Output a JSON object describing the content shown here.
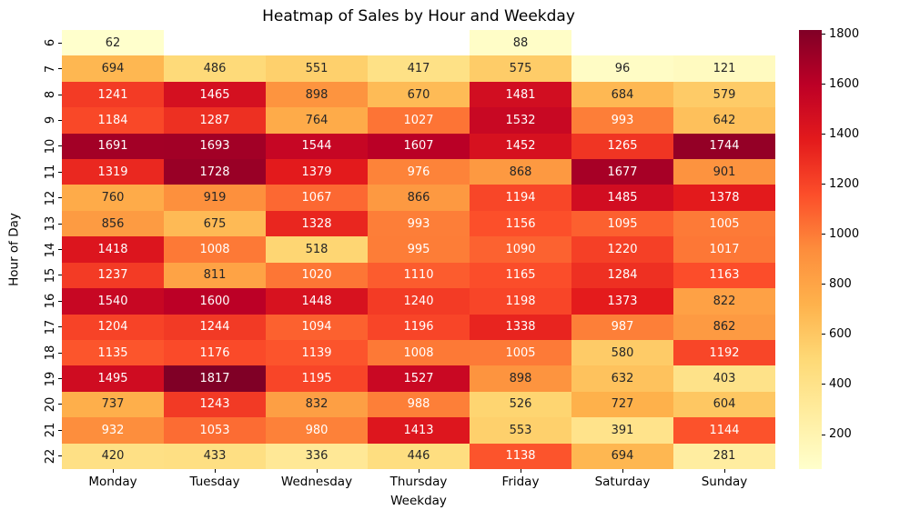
{
  "chart_data": {
    "type": "heatmap",
    "title": "Heatmap of Sales by Hour and Weekday",
    "xlabel": "Weekday",
    "ylabel": "Hour of Day",
    "columns": [
      "Monday",
      "Tuesday",
      "Wednesday",
      "Thursday",
      "Friday",
      "Saturday",
      "Sunday"
    ],
    "rows": [
      "6",
      "7",
      "8",
      "9",
      "10",
      "11",
      "12",
      "13",
      "14",
      "15",
      "16",
      "17",
      "18",
      "19",
      "20",
      "21",
      "22"
    ],
    "values": [
      [
        62,
        null,
        null,
        null,
        88,
        null,
        null
      ],
      [
        694,
        486,
        551,
        417,
        575,
        96,
        121
      ],
      [
        1241,
        1465,
        898,
        670,
        1481,
        684,
        579
      ],
      [
        1184,
        1287,
        764,
        1027,
        1532,
        993,
        642
      ],
      [
        1691,
        1693,
        1544,
        1607,
        1452,
        1265,
        1744
      ],
      [
        1319,
        1728,
        1379,
        976,
        868,
        1677,
        901
      ],
      [
        760,
        919,
        1067,
        866,
        1194,
        1485,
        1378
      ],
      [
        856,
        675,
        1328,
        993,
        1156,
        1095,
        1005
      ],
      [
        1418,
        1008,
        518,
        995,
        1090,
        1220,
        1017
      ],
      [
        1237,
        811,
        1020,
        1110,
        1165,
        1284,
        1163
      ],
      [
        1540,
        1600,
        1448,
        1240,
        1198,
        1373,
        822
      ],
      [
        1204,
        1244,
        1094,
        1196,
        1338,
        987,
        862
      ],
      [
        1135,
        1176,
        1139,
        1008,
        1005,
        580,
        1192
      ],
      [
        1495,
        1817,
        1195,
        1527,
        898,
        632,
        403
      ],
      [
        737,
        1243,
        832,
        988,
        526,
        727,
        604
      ],
      [
        932,
        1053,
        980,
        1413,
        553,
        391,
        1144
      ],
      [
        420,
        433,
        336,
        446,
        1138,
        694,
        281
      ]
    ],
    "vmin": 62,
    "vmax": 1817,
    "colormap": "YlOrRd",
    "colormap_colors": [
      "#ffffcc",
      "#ffeda0",
      "#fed976",
      "#feb24c",
      "#fd8d3c",
      "#fc4e2a",
      "#e31a1c",
      "#bd0026",
      "#800026"
    ],
    "colorbar_ticks": [
      200,
      400,
      600,
      800,
      1000,
      1200,
      1400,
      1600,
      1800
    ],
    "annotation_dark_text_color": "#262626",
    "annotation_light_text_color": "#ffffff",
    "missing_cell_color": "#ffffff",
    "legend_position": "right",
    "grid": false
  }
}
